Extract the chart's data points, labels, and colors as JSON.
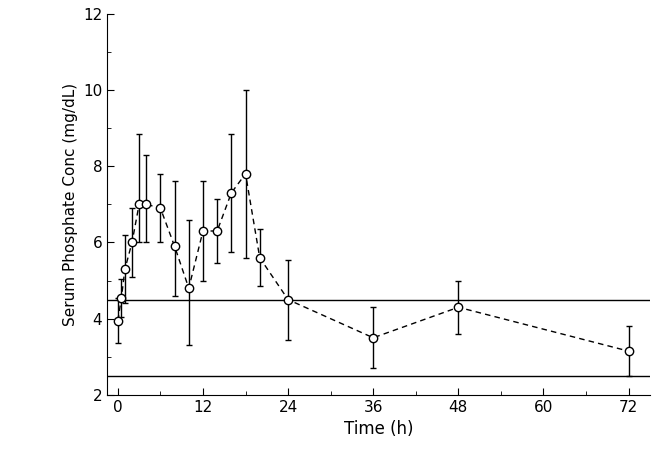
{
  "x": [
    0,
    0.5,
    1,
    2,
    3,
    4,
    6,
    8,
    10,
    12,
    14,
    16,
    18,
    20,
    24,
    36,
    48,
    72
  ],
  "y": [
    3.95,
    4.55,
    5.3,
    6.0,
    7.0,
    7.0,
    6.9,
    5.9,
    4.8,
    6.3,
    6.3,
    7.3,
    7.8,
    5.6,
    4.5,
    3.5,
    4.3,
    3.15
  ],
  "y_err_upper": [
    0.6,
    0.5,
    0.9,
    0.9,
    1.85,
    1.3,
    0.9,
    1.7,
    1.8,
    1.3,
    0.85,
    1.55,
    2.2,
    0.75,
    1.05,
    0.8,
    0.7,
    0.65
  ],
  "y_err_lower": [
    0.6,
    0.5,
    0.9,
    0.9,
    1.0,
    1.0,
    0.9,
    1.3,
    1.5,
    1.3,
    0.85,
    1.55,
    2.2,
    0.75,
    1.05,
    0.8,
    0.7,
    0.65
  ],
  "hline_upper": 4.5,
  "hline_lower": 2.5,
  "xlim": [
    -1.5,
    75
  ],
  "ylim": [
    2,
    12
  ],
  "xticks": [
    0,
    12,
    24,
    36,
    48,
    60,
    72
  ],
  "yticks": [
    2,
    4,
    6,
    8,
    10,
    12
  ],
  "xlabel": "Time (h)",
  "ylabel": "Serum Phosphate Conc (mg/dL)",
  "line_color": "#000000",
  "marker_facecolor": "#ffffff",
  "marker_edgecolor": "#000000",
  "hline_color": "#000000",
  "background_color": "#ffffff",
  "marker_size": 6,
  "line_width": 1.0,
  "xlabel_fontsize": 12,
  "ylabel_fontsize": 11,
  "tick_fontsize": 11
}
